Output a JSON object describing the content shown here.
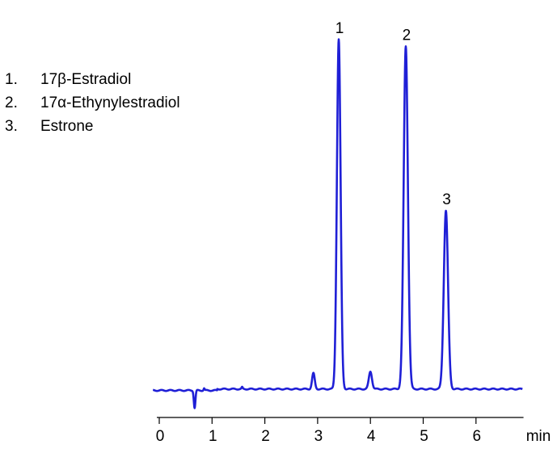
{
  "chart_data": {
    "type": "line",
    "title": "",
    "xlabel": "",
    "x_unit_label": "min",
    "ylabel": "",
    "xlim": [
      0,
      6.9
    ],
    "x_ticks": [
      0,
      1,
      2,
      3,
      4,
      5,
      6
    ],
    "x_tick_labels": [
      "0",
      "1",
      "2",
      "3",
      "4",
      "5",
      "6"
    ],
    "grid": false,
    "line_color": "#1f1fd6",
    "legend": {
      "placement": "top-left",
      "items": [
        {
          "number": "1.",
          "label": "17β-Estradiol"
        },
        {
          "number": "2.",
          "label": "17α-Ethynylestradiol"
        },
        {
          "number": "3.",
          "label": "Estrone"
        }
      ]
    },
    "series": [
      {
        "baseline": 0.0,
        "peaks": [
          {
            "label": "1",
            "x": 3.4,
            "height": 100,
            "width": 0.035
          },
          {
            "label": "2",
            "x": 4.67,
            "height": 98,
            "width": 0.04
          },
          {
            "label": "3",
            "x": 5.43,
            "height": 51,
            "width": 0.04
          }
        ],
        "minor_features": [
          {
            "x": 0.67,
            "height": -5,
            "width": 0.015
          },
          {
            "x": 0.85,
            "height": 0.6,
            "width": 0.01
          },
          {
            "x": 1.57,
            "height": 0.5,
            "width": 0.01
          },
          {
            "x": 2.92,
            "height": 4.5,
            "width": 0.025
          },
          {
            "x": 4.0,
            "height": 5,
            "width": 0.03
          }
        ]
      }
    ]
  }
}
